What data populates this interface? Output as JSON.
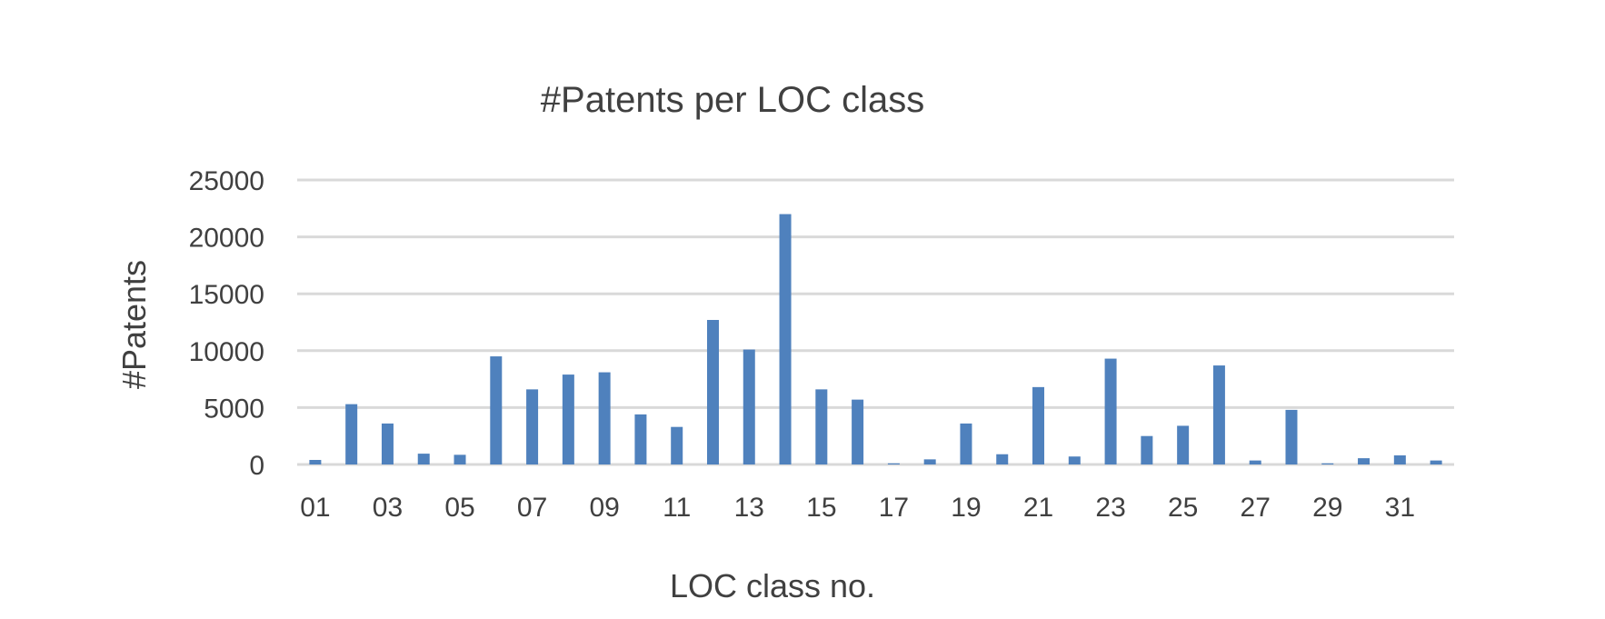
{
  "chart_data": {
    "type": "bar",
    "title": "#Patents per LOC class",
    "xlabel": "LOC class no.",
    "ylabel": "#Patents",
    "categories": [
      "01",
      "02",
      "03",
      "04",
      "05",
      "06",
      "07",
      "08",
      "09",
      "10",
      "11",
      "12",
      "13",
      "14",
      "15",
      "16",
      "17",
      "18",
      "19",
      "20",
      "21",
      "22",
      "23",
      "24",
      "25",
      "26",
      "27",
      "28",
      "29",
      "30",
      "31",
      "32"
    ],
    "x_tick_labels": [
      "01",
      "03",
      "05",
      "07",
      "09",
      "11",
      "13",
      "15",
      "17",
      "19",
      "21",
      "23",
      "25",
      "27",
      "29",
      "31"
    ],
    "values": [
      400,
      5300,
      3600,
      950,
      850,
      9500,
      6600,
      7900,
      8100,
      4400,
      3300,
      12700,
      10100,
      22000,
      6600,
      5700,
      100,
      450,
      3600,
      900,
      6800,
      700,
      9300,
      2500,
      3400,
      8700,
      350,
      4800,
      100,
      550,
      800,
      350
    ],
    "ylim": [
      0,
      25000
    ],
    "y_ticks": [
      0,
      5000,
      10000,
      15000,
      20000,
      25000
    ],
    "grid": true,
    "legend": "none",
    "colors": {
      "bar": "#4f81bd",
      "grid": "#d9d9d9",
      "text": "#404040"
    }
  }
}
